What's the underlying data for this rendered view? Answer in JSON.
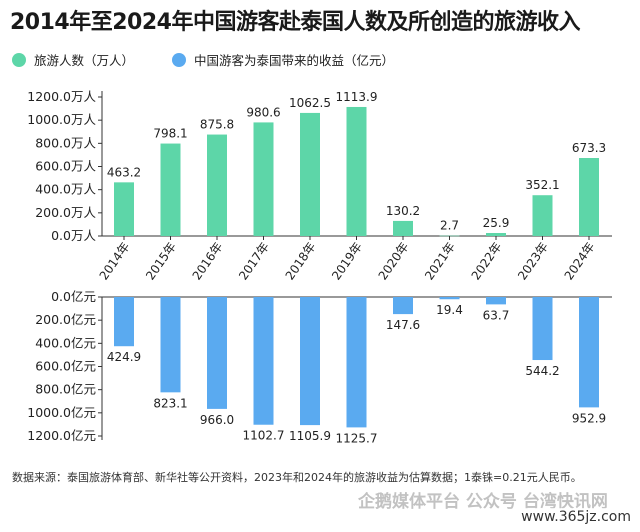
{
  "title": "2014年至2024年中国游客赴泰国人数及所创造的旅游收入",
  "legend": {
    "visitors": "旅游人数（万人）",
    "revenue": "中国游客为泰国带来的收益（亿元）"
  },
  "colors": {
    "visitors": "#5dd6a8",
    "revenue": "#5aaaf0",
    "axis": "#333333",
    "label": "#222222"
  },
  "chart_data": [
    {
      "type": "bar",
      "title": "",
      "categories": [
        "2014年",
        "2015年",
        "2016年",
        "2017年",
        "2018年",
        "2019年",
        "2020年",
        "2021年",
        "2022年",
        "2023年",
        "2024年"
      ],
      "series": [
        {
          "name": "旅游人数（万人）",
          "values": [
            463.2,
            798.1,
            875.8,
            980.6,
            1062.5,
            1113.9,
            130.2,
            2.7,
            25.9,
            352.1,
            673.3
          ]
        }
      ],
      "value_labels": [
        "463.2",
        "798.1",
        "875.8",
        "980.6",
        "1062.5",
        "1113.9",
        "130.2",
        "2.7",
        "25.9",
        "352.1",
        "673.3"
      ],
      "yticks": [
        "0.0万人",
        "200.0万人",
        "400.0万人",
        "600.0万人",
        "800.0万人",
        "1000.0万人",
        "1200.0万人"
      ],
      "ylim": [
        0,
        1200
      ]
    },
    {
      "type": "bar",
      "title": "",
      "orientation": "downward",
      "categories": [
        "2014年",
        "2015年",
        "2016年",
        "2017年",
        "2018年",
        "2019年",
        "2020年",
        "2021年",
        "2022年",
        "2023年",
        "2024年"
      ],
      "series": [
        {
          "name": "中国游客为泰国带来的收益（亿元）",
          "values": [
            424.9,
            823.1,
            966.0,
            1102.7,
            1105.9,
            1125.7,
            147.6,
            19.4,
            63.7,
            544.2,
            952.9
          ]
        }
      ],
      "value_labels": [
        "424.9",
        "823.1",
        "966.0",
        "1102.7",
        "1105.9",
        "1125.7",
        "147.6",
        "19.4",
        "63.7",
        "544.2",
        "952.9"
      ],
      "yticks": [
        "0.0亿元",
        "200.0亿元",
        "400.0亿元",
        "600.0亿元",
        "800.0亿元",
        "1000.0亿元",
        "1200.0亿元"
      ],
      "ylim": [
        0,
        1200
      ]
    }
  ],
  "source_note": "数据来源：泰国旅游体育部、新华社等公开资料，2023年和2024年的旅游收益为估算数据；1泰铢=0.21元人民币。",
  "watermark": "企鹅媒体平台 公众号 台湾快讯网",
  "watermark_url": "www.365jz.com"
}
